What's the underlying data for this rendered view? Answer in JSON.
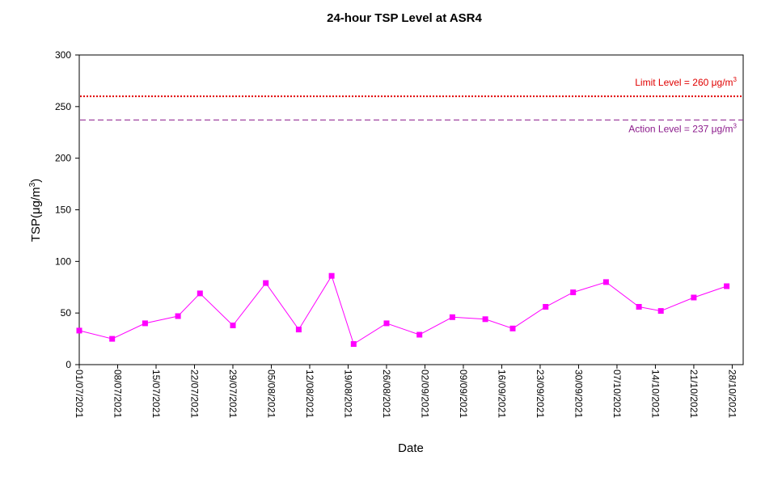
{
  "chart_data": {
    "type": "line",
    "title": "24-hour TSP Level at ASR4",
    "xlabel": "Date",
    "ylabel": "TSP(μg/m³)",
    "ylabel_parts": {
      "main": "TSP(",
      "unit": "μg/m",
      "sup": "3",
      "close": ")"
    },
    "ylim": [
      0,
      300
    ],
    "yticks": [
      0,
      50,
      100,
      150,
      200,
      250,
      300
    ],
    "xlim": [
      "2021-07-01",
      "2021-10-30"
    ],
    "xticks": [
      "01/07/2021",
      "08/07/2021",
      "15/07/2021",
      "22/07/2021",
      "29/07/2021",
      "05/08/2021",
      "12/08/2021",
      "19/08/2021",
      "26/08/2021",
      "02/09/2021",
      "09/09/2021",
      "16/09/2021",
      "23/09/2021",
      "30/09/2021",
      "07/10/2021",
      "14/10/2021",
      "21/10/2021",
      "28/10/2021"
    ],
    "grid": false,
    "series": [
      {
        "color": "#ff00ff",
        "marker": "square",
        "x": [
          "2021-07-01",
          "2021-07-07",
          "2021-07-13",
          "2021-07-19",
          "2021-07-23",
          "2021-07-29",
          "2021-08-04",
          "2021-08-10",
          "2021-08-16",
          "2021-08-20",
          "2021-08-26",
          "2021-09-01",
          "2021-09-07",
          "2021-09-13",
          "2021-09-18",
          "2021-09-24",
          "2021-09-29",
          "2021-10-05",
          "2021-10-11",
          "2021-10-15",
          "2021-10-21",
          "2021-10-27"
        ],
        "y": [
          33,
          25,
          40,
          47,
          69,
          38,
          79,
          34,
          86,
          20,
          40,
          29,
          46,
          44,
          35,
          56,
          70,
          80,
          56,
          52,
          65,
          76
        ]
      }
    ],
    "reference_lines": [
      {
        "value": 260,
        "label": "Limit Level",
        "label_main": "Limit Level  = 260 ",
        "unit": "μg/m",
        "sup": "3",
        "color": "#e00000",
        "style": "dotted"
      },
      {
        "value": 237,
        "label": "Action Level",
        "label_main": "Action Level  = 237 ",
        "unit": "μg/m",
        "sup": "3",
        "color": "#8b1a8b",
        "style": "dashed"
      }
    ]
  }
}
